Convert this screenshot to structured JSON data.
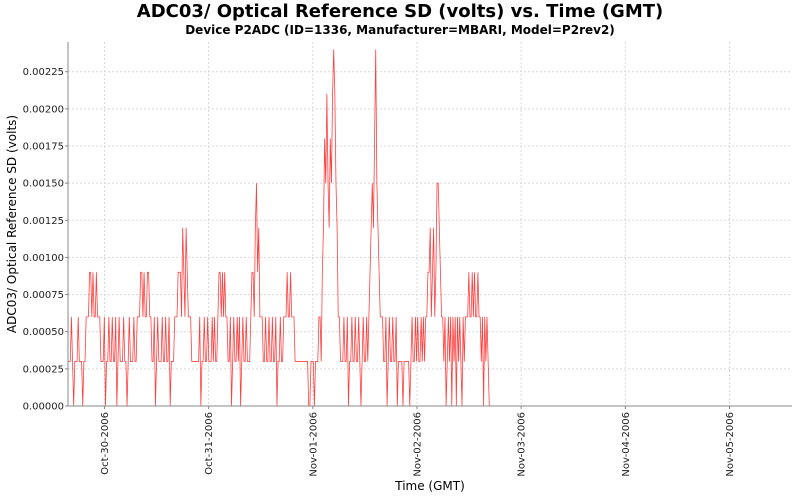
{
  "chart_data": {
    "type": "line",
    "title": "ADC03/ Optical Reference SD (volts) vs. Time (GMT)",
    "subtitle": "Device P2ADC (ID=1336, Manufacturer=MBARI, Model=P2rev2)",
    "xlabel": "Time (GMT)",
    "ylabel": "ADC03/ Optical Reference SD (volts)",
    "xlim_days": [
      -0.35,
      6.6
    ],
    "ylim": [
      0,
      0.00245
    ],
    "grid": true,
    "y_ticks": [
      {
        "value": 0.0,
        "label": "0.00000"
      },
      {
        "value": 0.00025,
        "label": "0.00025"
      },
      {
        "value": 0.0005,
        "label": "0.00050"
      },
      {
        "value": 0.00075,
        "label": "0.00075"
      },
      {
        "value": 0.001,
        "label": "0.00100"
      },
      {
        "value": 0.00125,
        "label": "0.00125"
      },
      {
        "value": 0.0015,
        "label": "0.00150"
      },
      {
        "value": 0.00175,
        "label": "0.00175"
      },
      {
        "value": 0.002,
        "label": "0.00200"
      },
      {
        "value": 0.00225,
        "label": "0.00225"
      }
    ],
    "x_ticks": [
      {
        "day": 0,
        "label": "Oct-30-2006"
      },
      {
        "day": 1,
        "label": "Oct-31-2006"
      },
      {
        "day": 2,
        "label": "Nov-01-2006"
      },
      {
        "day": 3,
        "label": "Nov-02-2006"
      },
      {
        "day": 4,
        "label": "Nov-03-2006"
      },
      {
        "day": 5,
        "label": "Nov-04-2006"
      },
      {
        "day": 6,
        "label": "Nov-05-2006"
      }
    ],
    "series": [
      {
        "name": "ADC03/ Optical Reference SD",
        "color": "#ff0000",
        "x_start_day": -0.35,
        "x_step_day": 0.0109,
        "values": [
          0.0003,
          0.0003,
          0.0003,
          0.0006,
          0.0003,
          0.0,
          0.0003,
          0.0003,
          0.0003,
          0.0006,
          0.0003,
          0.0003,
          0.0003,
          0.0,
          0.0003,
          0.0003,
          0.0006,
          0.0006,
          0.0006,
          0.0009,
          0.0009,
          0.0006,
          0.0009,
          0.0006,
          0.0006,
          0.0009,
          0.0006,
          0.0006,
          0.0006,
          0.0003,
          0.0003,
          0.0003,
          0.0006,
          0.0,
          0.0003,
          0.0003,
          0.0006,
          0.0003,
          0.0003,
          0.0006,
          0.0003,
          0.0003,
          0.0006,
          0.0,
          0.0003,
          0.0006,
          0.0003,
          0.0003,
          0.0003,
          0.0006,
          0.0003,
          0.0003,
          0.0,
          0.0003,
          0.0006,
          0.0003,
          0.0003,
          0.0003,
          0.0006,
          0.0003,
          0.0003,
          0.0006,
          0.0006,
          0.0006,
          0.0009,
          0.0009,
          0.0006,
          0.0009,
          0.0006,
          0.0006,
          0.0009,
          0.0009,
          0.0006,
          0.0006,
          0.0003,
          0.0003,
          0.0006,
          0.0,
          0.0003,
          0.0006,
          0.0003,
          0.0003,
          0.0003,
          0.0006,
          0.0003,
          0.0003,
          0.0006,
          0.0003,
          0.0003,
          0.0006,
          0.0,
          0.0003,
          0.0003,
          0.0003,
          0.0006,
          0.0006,
          0.0006,
          0.0009,
          0.0009,
          0.0009,
          0.0006,
          0.0012,
          0.0009,
          0.0006,
          0.0012,
          0.0009,
          0.0006,
          0.0006,
          0.0006,
          0.0003,
          0.0003,
          0.0003,
          0.0003,
          0.0003,
          0.0003,
          0.0003,
          0.0006,
          0.0,
          0.0003,
          0.0003,
          0.0006,
          0.0003,
          0.0003,
          0.0006,
          0.0003,
          0.0003,
          0.0003,
          0.0006,
          0.0003,
          0.0006,
          0.0003,
          0.0003,
          0.0006,
          0.0009,
          0.0009,
          0.0006,
          0.0009,
          0.0006,
          0.0009,
          0.0006,
          0.0006,
          0.0003,
          0.0003,
          0.0006,
          0.0,
          0.0003,
          0.0006,
          0.0003,
          0.0003,
          0.0006,
          0.0003,
          0.0006,
          0.0,
          0.0003,
          0.0006,
          0.0003,
          0.0003,
          0.0006,
          0.0003,
          0.0003,
          0.0003,
          0.0006,
          0.0009,
          0.0009,
          0.0006,
          0.0012,
          0.0015,
          0.0009,
          0.0012,
          0.0006,
          0.0006,
          0.0006,
          0.0003,
          0.0003,
          0.0006,
          0.0003,
          0.0003,
          0.0006,
          0.0003,
          0.0003,
          0.0006,
          0.0003,
          0.0003,
          0.0006,
          0.0,
          0.0003,
          0.0003,
          0.0006,
          0.0003,
          0.0003,
          0.0006,
          0.0006,
          0.0006,
          0.0009,
          0.0006,
          0.0006,
          0.0009,
          0.0006,
          0.0006,
          0.0006,
          0.0003,
          0.0003,
          0.0003,
          0.0003,
          0.0003,
          0.0003,
          0.0003,
          0.0003,
          0.0003,
          0.0003,
          0.0003,
          0.0003,
          0.0,
          0.0,
          0.0003,
          0.0003,
          0.0003,
          0.0,
          0.0003,
          0.0003,
          0.0003,
          0.0006,
          0.0006,
          0.0003,
          0.0009,
          0.0012,
          0.0018,
          0.0015,
          0.0021,
          0.0015,
          0.0012,
          0.0018,
          0.0015,
          0.0021,
          0.0024,
          0.0021,
          0.0015,
          0.0012,
          0.0006,
          0.0006,
          0.0003,
          0.0003,
          0.0003,
          0.0006,
          0.0003,
          0.0003,
          0.0006,
          0.0,
          0.0003,
          0.0003,
          0.0006,
          0.0003,
          0.0003,
          0.0006,
          0.0003,
          0.0003,
          0.0006,
          0.0003,
          0.0,
          0.0003,
          0.0006,
          0.0003,
          0.0003,
          0.0006,
          0.0003,
          0.0006,
          0.0009,
          0.0012,
          0.0015,
          0.0012,
          0.0018,
          0.0024,
          0.0015,
          0.0012,
          0.0009,
          0.0006,
          0.0006,
          0.0006,
          0.0003,
          0.0003,
          0.0006,
          0.0,
          0.0003,
          0.0006,
          0.0003,
          0.0003,
          0.0006,
          0.0003,
          0.0003,
          0.0006,
          0.0,
          0.0003,
          0.0003,
          0.0003,
          0.0003,
          0.0,
          0.0003,
          0.0003,
          0.0003,
          0.0003,
          0.0003,
          0.0,
          0.0003,
          0.0006,
          0.0003,
          0.0003,
          0.0006,
          0.0003,
          0.0006,
          0.0003,
          0.0003,
          0.0006,
          0.0003,
          0.0006,
          0.0003,
          0.0006,
          0.0006,
          0.0009,
          0.0009,
          0.0012,
          0.0006,
          0.0009,
          0.0012,
          0.0006,
          0.0009,
          0.0015,
          0.0015,
          0.0012,
          0.0009,
          0.0006,
          0.0006,
          0.0003,
          0.0006,
          0.0,
          0.0003,
          0.0006,
          0.0003,
          0.0006,
          0.0,
          0.0006,
          0.0003,
          0.0006,
          0.0,
          0.0006,
          0.0003,
          0.0006,
          0.0003,
          0.0,
          0.0006,
          0.0003,
          0.0006,
          0.0006,
          0.0006,
          0.0009,
          0.0006,
          0.0006,
          0.0009,
          0.0006,
          0.0009,
          0.0006,
          0.0006,
          0.0009,
          0.0006,
          0.0006,
          0.0003,
          0.0006,
          0.0,
          0.0006,
          0.0003,
          0.0006,
          0.0003,
          0.0
        ]
      }
    ]
  }
}
